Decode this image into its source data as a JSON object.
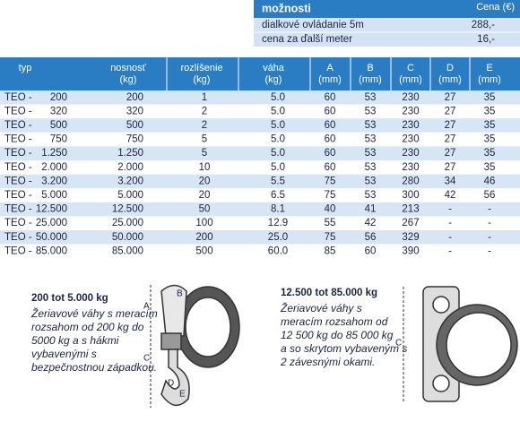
{
  "options": {
    "title": "možnosti",
    "price_header": "Cena (€)",
    "rows": [
      [
        "dialkové ovládanie 5m",
        "288,-"
      ],
      [
        "cena za ďalší meter",
        "16,-"
      ]
    ]
  },
  "table": {
    "headers": [
      [
        "typ"
      ],
      [
        "nosnosť",
        "(kg)"
      ],
      [
        "rozlíšenie",
        "(kg)"
      ],
      [
        "váha",
        "(kg)"
      ],
      [
        "A",
        "(mm)"
      ],
      [
        "B",
        "(mm)"
      ],
      [
        "C",
        "(mm)"
      ],
      [
        "D",
        "(mm)"
      ],
      [
        "E",
        "(mm)"
      ]
    ],
    "rows": [
      [
        "TEO -",
        "200",
        "200",
        "1",
        "5.0",
        "60",
        "53",
        "230",
        "27",
        "35"
      ],
      [
        "TEO -",
        "320",
        "320",
        "2",
        "5.0",
        "60",
        "53",
        "230",
        "27",
        "35"
      ],
      [
        "TEO -",
        "500",
        "500",
        "2",
        "5.0",
        "60",
        "53",
        "230",
        "27",
        "35"
      ],
      [
        "TEO -",
        "750",
        "750",
        "5",
        "5.0",
        "60",
        "53",
        "230",
        "27",
        "35"
      ],
      [
        "TEO -",
        "1.250",
        "1.250",
        "5",
        "5.0",
        "60",
        "53",
        "230",
        "27",
        "35"
      ],
      [
        "TEO -",
        "2.000",
        "2.000",
        "10",
        "5.0",
        "60",
        "53",
        "230",
        "27",
        "35"
      ],
      [
        "TEO -",
        "3.200",
        "3.200",
        "20",
        "5.5",
        "75",
        "53",
        "280",
        "34",
        "46"
      ],
      [
        "TEO -",
        "5.000",
        "5.000",
        "20",
        "6.5",
        "75",
        "53",
        "300",
        "42",
        "56"
      ],
      [
        "TEO -",
        "12.500",
        "12.500",
        "50",
        "8.1",
        "40",
        "41",
        "213",
        "-",
        "-"
      ],
      [
        "TEO -",
        "25.000",
        "25.000",
        "100",
        "12.9",
        "55",
        "42",
        "267",
        "-",
        "-"
      ],
      [
        "TEO -",
        "50.000",
        "50.000",
        "200",
        "25.0",
        "75",
        "56",
        "329",
        "-",
        "-"
      ],
      [
        "TEO -",
        "85.000",
        "85.000",
        "500",
        "60.0",
        "85",
        "60",
        "390",
        "-",
        "-"
      ]
    ]
  },
  "products": [
    {
      "title": "200 tot 5.000 kg",
      "lines": [
        "Žeriavové váhy s meracím",
        "rozsahom od 200 kg do",
        "5000 kg a s hákmi",
        "vybavenými s",
        "bezpečnostnou západkou."
      ],
      "labels": [
        "A",
        "B",
        "C",
        "D",
        "E"
      ]
    },
    {
      "title": "12.500 tot 85.000 kg",
      "lines": [
        "Žeriavové váhy s",
        "meracím rozsahom od",
        "12 500 kg do 85 000 kg",
        "a so skrytom  vybaveným s",
        "2 závesnými okami."
      ],
      "labels": [
        "C"
      ]
    }
  ]
}
